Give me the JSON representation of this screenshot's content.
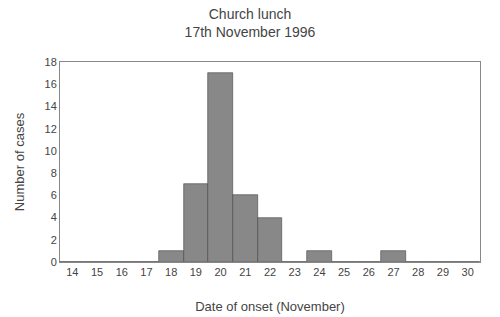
{
  "chart_data": {
    "type": "bar",
    "title": "Church lunch",
    "subtitle": "17th November 1996",
    "xlabel": "Date of onset (November)",
    "ylabel": "Number of cases",
    "x": [
      14,
      15,
      16,
      17,
      18,
      19,
      20,
      21,
      22,
      23,
      24,
      25,
      26,
      27,
      28,
      29,
      30
    ],
    "values": [
      0,
      0,
      0,
      0,
      1,
      7,
      17,
      6,
      4,
      0,
      1,
      0,
      0,
      1,
      0,
      0,
      0
    ],
    "color": "#888888",
    "xlim": [
      13.5,
      30.5
    ],
    "xticks": [
      14,
      15,
      16,
      17,
      18,
      19,
      20,
      21,
      22,
      23,
      24,
      25,
      26,
      27,
      28,
      29,
      30
    ],
    "ylim": [
      0,
      18
    ],
    "yticks": [
      0,
      2,
      4,
      6,
      8,
      10,
      12,
      14,
      16,
      18
    ],
    "grid": false
  }
}
